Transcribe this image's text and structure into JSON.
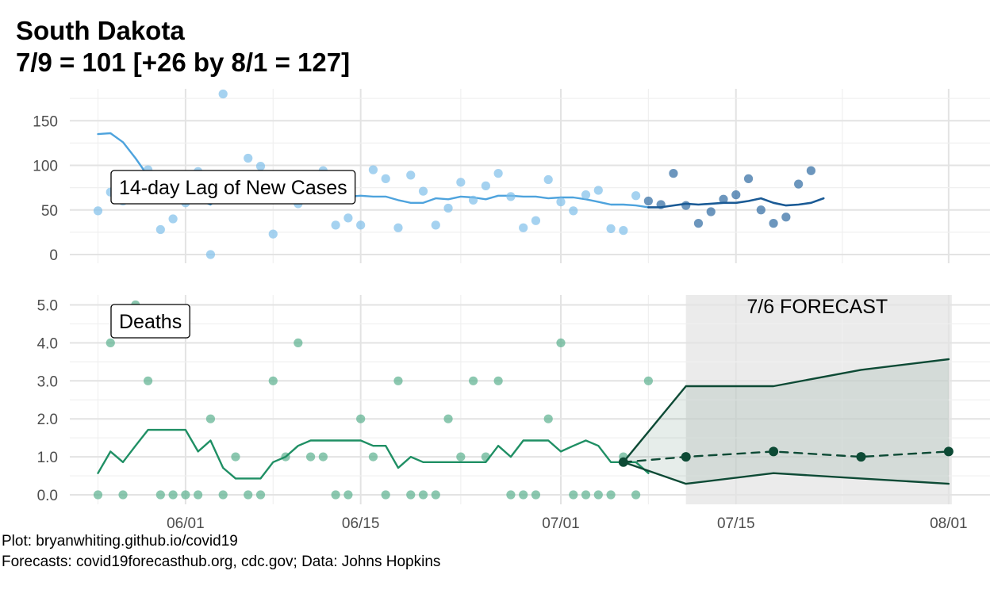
{
  "header": {
    "title": "South Dakota",
    "subtitle": "7/9 = 101 [+26 by 8/1 = 127]"
  },
  "footer": {
    "line1": "Plot: bryanwhiting.github.io/covid19",
    "line2": "Forecasts: covid19forecasthub.org, cdc.gov; Data: Johns Hopkins"
  },
  "colors": {
    "cases_points_light": "#7fbfea",
    "cases_points_dark": "#3b73a7",
    "cases_line_light": "#4ea3dd",
    "cases_line_dark": "#1a5a95",
    "deaths_points": "#5bb08f",
    "deaths_line": "#1f8f64",
    "forecast": "#0d4a35",
    "forecast_band": "#d9dedb",
    "forecast_region": "#ebebeb"
  },
  "chart_data": [
    {
      "type": "scatter",
      "panel": "cases",
      "label": "14-day Lag of New Cases",
      "x_axis": {
        "start": "2020-05-25",
        "end": "2020-08-01",
        "ticks": [
          "06/01",
          "06/15",
          "07/01",
          "07/15",
          "08/01"
        ],
        "tick_days": [
          7,
          21,
          37,
          51,
          68
        ]
      },
      "ylim": [
        0,
        180
      ],
      "yticks": [
        "0",
        "50",
        "100",
        "150"
      ],
      "ytick_values": [
        0,
        50,
        100,
        150
      ],
      "points_day_start": 0,
      "points": [
        49,
        70,
        60,
        87,
        95,
        28,
        40,
        58,
        93,
        0,
        180,
        80,
        108,
        99,
        23,
        72,
        57,
        81,
        94,
        33,
        41,
        33,
        95,
        85,
        30,
        89,
        71,
        33,
        52,
        81,
        61,
        77,
        91,
        65,
        30,
        38,
        84,
        59,
        49,
        67,
        72,
        29,
        27,
        66,
        60,
        56,
        91,
        55,
        35,
        48,
        62,
        67,
        85,
        50,
        35,
        42,
        79,
        94
      ],
      "recent_from_day": 44,
      "line_day_start": 0,
      "line": [
        135,
        136,
        126,
        108,
        88,
        75,
        68,
        65,
        62,
        56,
        68,
        69,
        70,
        68,
        67,
        68,
        67,
        66,
        67,
        66,
        65,
        66,
        65,
        65,
        61,
        58,
        58,
        63,
        62,
        65,
        64,
        62,
        66,
        66,
        65,
        65,
        63,
        64,
        64,
        62,
        59,
        56,
        56,
        55,
        53,
        53,
        55,
        57,
        56,
        57,
        58,
        58,
        60,
        63,
        58,
        55,
        56,
        58,
        63
      ]
    },
    {
      "type": "scatter",
      "panel": "deaths",
      "label": "Deaths",
      "forecast_label": "7/6 FORECAST",
      "x_axis": {
        "start": "2020-05-25",
        "end": "2020-08-01",
        "ticks": [
          "06/01",
          "06/15",
          "07/01",
          "07/15",
          "08/01"
        ],
        "tick_days": [
          7,
          21,
          37,
          51,
          68
        ]
      },
      "ylim": [
        0,
        5
      ],
      "yticks": [
        "0.0",
        "1.0",
        "2.0",
        "3.0",
        "4.0",
        "5.0"
      ],
      "ytick_values": [
        0,
        1,
        2,
        3,
        4,
        5
      ],
      "points_day_start": 0,
      "points": [
        0,
        4,
        0,
        5,
        3,
        0,
        0,
        0,
        0,
        2,
        0,
        1,
        0,
        0,
        3,
        1,
        4,
        1,
        1,
        0,
        0,
        2,
        1,
        0,
        3,
        0,
        0,
        0,
        2,
        1,
        3,
        1,
        3,
        0,
        0,
        0,
        2,
        4,
        0,
        0,
        0,
        0,
        1,
        0,
        3
      ],
      "line_day_start": 0,
      "line": [
        0.57,
        1.14,
        0.86,
        1.29,
        1.71,
        1.71,
        1.71,
        1.71,
        1.14,
        1.43,
        0.71,
        0.43,
        0.43,
        0.43,
        0.86,
        1.0,
        1.29,
        1.43,
        1.43,
        1.43,
        1.43,
        1.43,
        1.29,
        1.29,
        0.71,
        1.0,
        0.86,
        0.86,
        0.86,
        0.86,
        0.86,
        0.86,
        1.29,
        1.0,
        1.43,
        1.43,
        1.43,
        1.14,
        1.29,
        1.43,
        1.29,
        0.86,
        0.86,
        0.86,
        0.57
      ],
      "forecast": {
        "region_start_day": 47,
        "region_end_day": 68,
        "day": [
          42,
          47,
          54,
          61,
          68
        ],
        "median": [
          0.86,
          1.0,
          1.14,
          1.0,
          1.14
        ],
        "upper": [
          0.86,
          2.86,
          2.86,
          3.29,
          3.57
        ],
        "lower": [
          0.86,
          0.29,
          0.57,
          0.43,
          0.29
        ]
      }
    }
  ]
}
